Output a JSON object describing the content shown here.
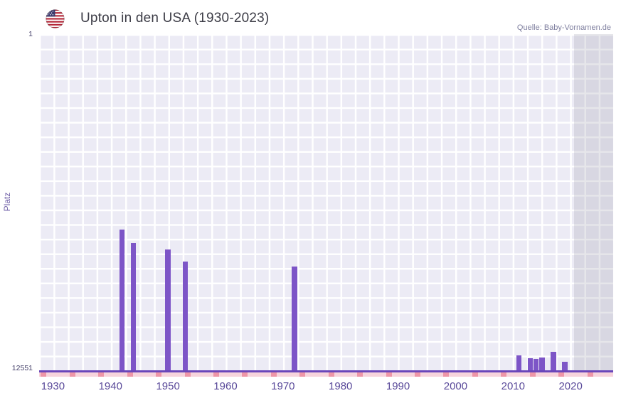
{
  "header": {
    "title": "Upton in den USA (1930-2023)",
    "source": "Quelle: Baby-Vornamen.de"
  },
  "chart_data": {
    "type": "bar",
    "title": "Upton in den USA (1930-2023)",
    "xlabel": "",
    "ylabel": "Platz",
    "grid": true,
    "legend": false,
    "y_axis": {
      "top_tick": "1",
      "bottom_tick": "12551",
      "best_rank": 1,
      "worst_rank": 12551,
      "inverted": true,
      "note": "rank 1 at top, bars grow upward from worst rank baseline"
    },
    "x_axis": {
      "start_year": 1927.6,
      "end_year": 2027.4,
      "ticks": [
        "1930",
        "1940",
        "1950",
        "1960",
        "1970",
        "1980",
        "1990",
        "2000",
        "2010",
        "2020"
      ]
    },
    "bar_width_years": 0.95,
    "bars": [
      {
        "year": 1942,
        "rank": 7300
      },
      {
        "year": 1944,
        "rank": 7800
      },
      {
        "year": 1950,
        "rank": 8050
      },
      {
        "year": 1953,
        "rank": 8500
      },
      {
        "year": 1972,
        "rank": 8680
      },
      {
        "year": 2011,
        "rank": 12000
      },
      {
        "year": 2013,
        "rank": 12100
      },
      {
        "year": 2014,
        "rank": 12130
      },
      {
        "year": 2015,
        "rank": 12080
      },
      {
        "year": 2017,
        "rank": 11860
      },
      {
        "year": 2019,
        "rank": 12230
      }
    ],
    "no_data_band": {
      "from_year": 2020.6,
      "to_year": 2027.4
    },
    "unranked_ticks": {
      "start_year": 1927.9,
      "interval_years": 5,
      "count": 20
    },
    "colors": {
      "bar": "#7d55c7",
      "plot_bg": "#ecebf5",
      "grid_line": "#ffffff",
      "axis_line": "#6a46ba",
      "no_data_band": "#9a9aac40",
      "pink_strip": "#f7d4dc",
      "pink_tick": "#ee96a8",
      "x_tick_label": "#5a4a9a",
      "y_tick_label": "#45406a",
      "title": "#3c3c46",
      "source": "#8080a0",
      "ylabel": "#6f5fa7"
    }
  }
}
